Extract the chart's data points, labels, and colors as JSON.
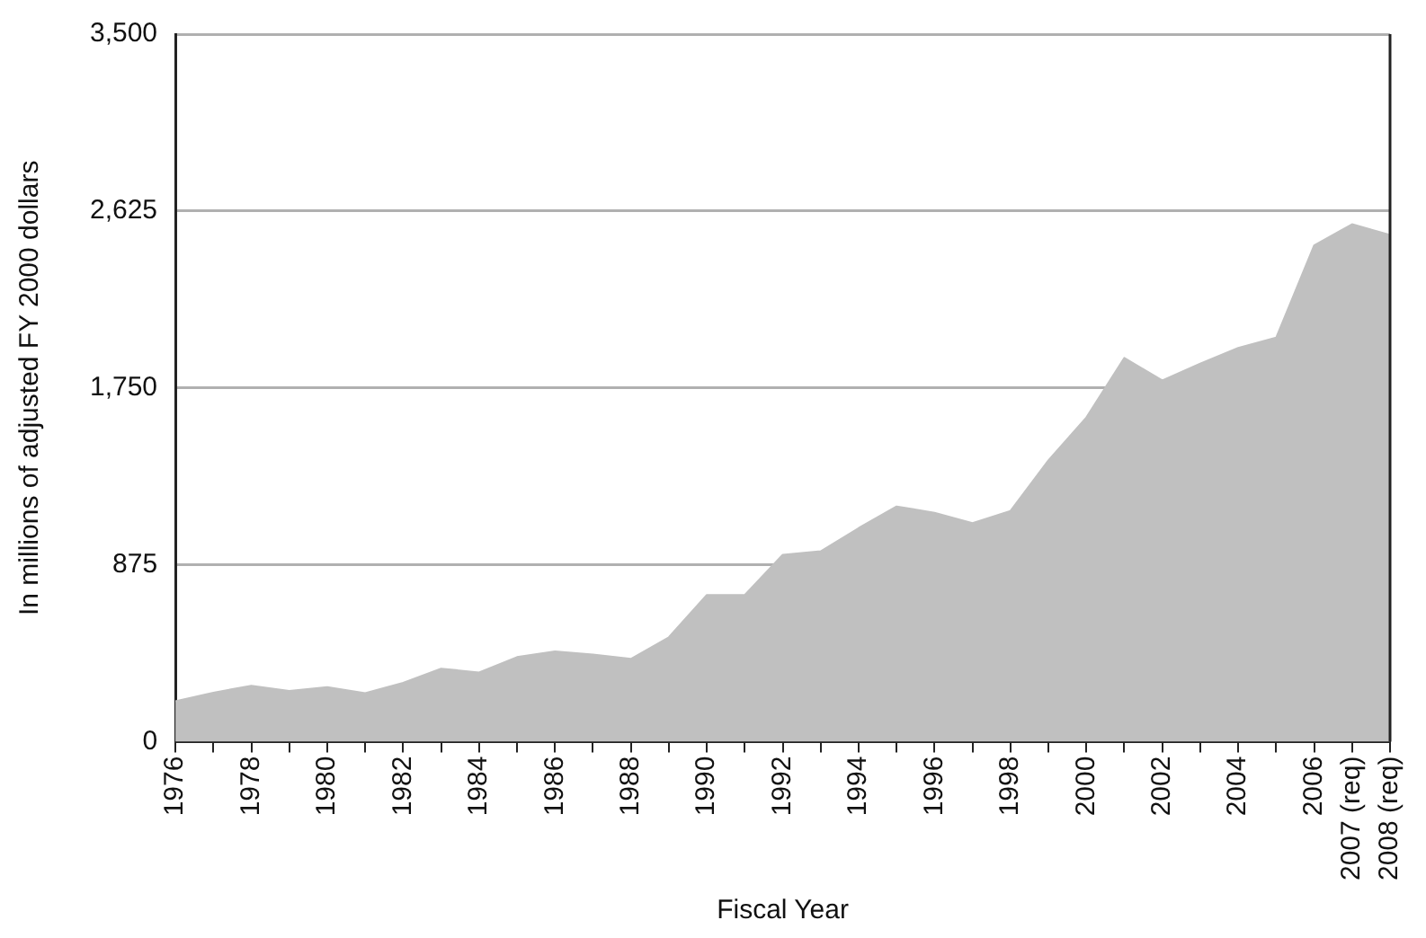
{
  "chart_data": {
    "type": "area",
    "xlabel": "Fiscal Year",
    "ylabel": "In millions of adjusted FY 2000 dollars",
    "categories": [
      "1976",
      null,
      "1978",
      null,
      "1980",
      null,
      "1982",
      null,
      "1984",
      null,
      "1986",
      null,
      "1988",
      null,
      "1990",
      null,
      "1992",
      null,
      "1994",
      null,
      "1996",
      null,
      "1998",
      null,
      "2000",
      null,
      "2002",
      null,
      "2004",
      null,
      "2006",
      "2007 (req)",
      "2008 (req)"
    ],
    "color": "#c0c0c0",
    "values": [
      200,
      243,
      277,
      252,
      270,
      240,
      292,
      362,
      343,
      419,
      447,
      432,
      410,
      517,
      726,
      726,
      925,
      942,
      1057,
      1164,
      1133,
      1082,
      1142,
      1392,
      1604,
      1899,
      1787,
      1871,
      1948,
      1999,
      2455,
      2560,
      2507
    ],
    "ylim": [
      0,
      3500
    ],
    "yticks": [
      0,
      {
        "value": 875,
        "label": "875"
      },
      {
        "value": 1750,
        "label": "1,750"
      },
      {
        "value": 2625,
        "label": "2,625"
      },
      {
        "value": 3500,
        "label": "3,500"
      }
    ],
    "grid": "y"
  }
}
